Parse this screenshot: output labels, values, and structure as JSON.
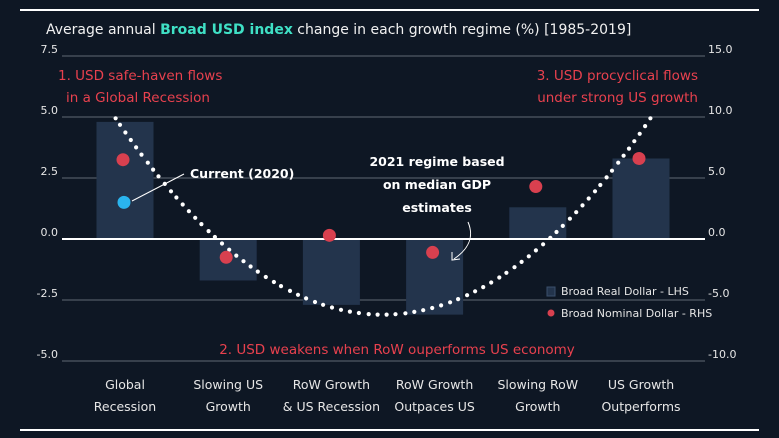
{
  "title": {
    "prefix": "Average annual ",
    "highlight": "Broad USD index",
    "suffix": " change in each growth regime (%) [1985-2019]"
  },
  "colors": {
    "background": "#0e1724",
    "bar": "#23344c",
    "dot": "#d8404f",
    "current": "#2ab4ee",
    "annotation": "#e8414e",
    "title_highlight": "#3fe0c5",
    "grid": "#7d8591"
  },
  "annotations": {
    "left_1": "1. USD safe-haven flows",
    "left_2": "in a Global Recession",
    "right_1": "3. USD procyclical flows",
    "right_2": "under strong US growth",
    "bottom": "2. USD weakens when RoW ouperforms US economy",
    "current": "Current (2020)",
    "regime_1": "2021 regime based",
    "regime_2": "on median GDP",
    "regime_3": "estimates"
  },
  "chart_data": {
    "type": "bar",
    "categories": [
      [
        "Global",
        "Recession"
      ],
      [
        "Slowing US",
        "Growth"
      ],
      [
        "RoW Growth",
        "& US Recession"
      ],
      [
        "RoW Growth",
        "Outpaces US"
      ],
      [
        "Slowing RoW",
        "Growth"
      ],
      [
        "US Growth",
        "Outperforms"
      ]
    ],
    "series": [
      {
        "name": "Broad Real Dollar - LHS",
        "axis": "left",
        "kind": "bar",
        "values": [
          4.8,
          -1.7,
          -2.7,
          -3.1,
          1.3,
          3.3
        ]
      },
      {
        "name": "Broad Nominal Dollar - RHS",
        "axis": "right",
        "kind": "dot",
        "values": [
          6.5,
          -1.5,
          0.3,
          -1.1,
          4.3,
          6.6
        ]
      }
    ],
    "current_point": {
      "label": "Current (2020)",
      "category_index": 0,
      "value": 1.5
    },
    "y_left": {
      "min": -5,
      "max": 7.5,
      "ticks": [
        "7.5",
        "5.0",
        "2.5",
        "0.0",
        "-2.5",
        "-5.0"
      ],
      "tick_values": [
        7.5,
        5,
        2.5,
        0,
        -2.5,
        -5
      ]
    },
    "y_right": {
      "min": -10,
      "max": 15,
      "ticks": [
        "15.0",
        "10.0",
        "5.0",
        "0.0",
        "-5.0",
        "-10.0"
      ],
      "tick_values": [
        15,
        10,
        5,
        0,
        -5,
        -10
      ]
    },
    "trend_curve": {
      "style": "dotted",
      "from": [
        -0.1,
        5.0
      ],
      "vertex": [
        2.5,
        -3.1
      ],
      "to": [
        5.1,
        5.0
      ]
    }
  }
}
